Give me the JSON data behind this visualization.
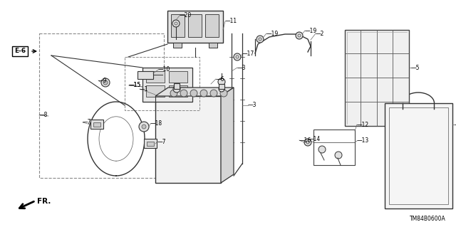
{
  "background_color": "#ffffff",
  "line_color": "#444444",
  "text_color": "#000000",
  "diagram_code": "TM84B0600A",
  "fr_label": "FR.",
  "e6_label": "E-6",
  "figsize": [
    6.4,
    3.19
  ],
  "dpi": 100
}
